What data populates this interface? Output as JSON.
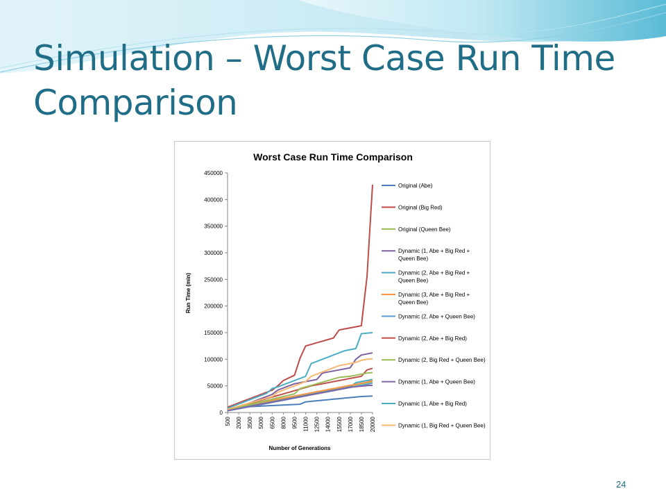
{
  "slide": {
    "title": "Simulation – Worst Case Run Time Comparison",
    "page_number": "24",
    "colors": {
      "title": "#1f6d86",
      "wave_dark": "#5bbbd6",
      "wave_light": "#bfe8f3",
      "accent": "#1f6d86"
    }
  },
  "chart_data": {
    "type": "line",
    "title": "Worst Case Run Time Comparison",
    "xlabel": "Number of Generations",
    "ylabel": "Run Time (min)",
    "ylim": [
      0,
      450000
    ],
    "yticks": [
      0,
      50000,
      100000,
      150000,
      200000,
      250000,
      300000,
      350000,
      400000,
      450000
    ],
    "x": [
      500,
      1250,
      2000,
      2750,
      3500,
      4250,
      5000,
      5750,
      6500,
      7250,
      8000,
      8750,
      9500,
      10250,
      11000,
      11750,
      12500,
      13250,
      14000,
      14750,
      15500,
      16250,
      17000,
      17750,
      18500,
      19250,
      20000
    ],
    "xtick_labels": [
      "500",
      "2000",
      "3500",
      "5000",
      "6500",
      "8000",
      "9500",
      "11000",
      "12500",
      "14000",
      "15500",
      "17000",
      "18500",
      "20000"
    ],
    "grid": false,
    "legend_position": "right",
    "series": [
      {
        "name": "Original (Abe)",
        "color": "#4a7ebb",
        "values": [
          8000,
          9000,
          10000,
          10500,
          11000,
          11500,
          12000,
          12500,
          13000,
          13500,
          14000,
          14500,
          15000,
          15500,
          20000,
          21000,
          22000,
          23000,
          24000,
          25000,
          26000,
          27000,
          28000,
          29000,
          30000,
          30500,
          31000
        ]
      },
      {
        "name": "Original (Big Red)",
        "color": "#be4b48",
        "values": [
          10000,
          14000,
          18000,
          22000,
          26000,
          30000,
          34000,
          38000,
          42000,
          50000,
          60000,
          65000,
          70000,
          102000,
          125000,
          128000,
          131000,
          134000,
          137000,
          140000,
          155000,
          157000,
          159000,
          161000,
          163000,
          255000,
          428000
        ]
      },
      {
        "name": "Original (Queen Bee)",
        "color": "#98b954",
        "values": [
          6000,
          8000,
          10000,
          12000,
          14000,
          16000,
          18000,
          20000,
          22000,
          24000,
          26000,
          28000,
          30000,
          32000,
          34000,
          36000,
          38000,
          40000,
          42000,
          44000,
          46000,
          48000,
          50000,
          52000,
          54000,
          56000,
          58000
        ]
      },
      {
        "name": "Dynamic (1, Abe + Big Red + Queen Bee)",
        "color": "#7d60a0",
        "values": [
          5000,
          8000,
          11000,
          14000,
          18000,
          22000,
          26000,
          30000,
          34000,
          42000,
          46000,
          50000,
          54000,
          56000,
          58000,
          60000,
          62000,
          74000,
          76000,
          78000,
          80000,
          82000,
          84000,
          100000,
          108000,
          110000,
          112000
        ]
      },
      {
        "name": "Dynamic (2, Abe + Big Red + Queen Bee)",
        "color": "#46aac5",
        "values": [
          4000,
          6000,
          8000,
          10000,
          12000,
          14000,
          16000,
          18000,
          20000,
          22000,
          24000,
          26000,
          28000,
          30000,
          32000,
          34000,
          36000,
          38000,
          40000,
          42000,
          44000,
          46000,
          48000,
          56000,
          58000,
          60000,
          62000
        ]
      },
      {
        "name": "Dynamic (3, Abe + Big Red + Queen Bee)",
        "color": "#f79646",
        "values": [
          7000,
          9000,
          11000,
          13000,
          15000,
          17000,
          19000,
          21000,
          23000,
          25000,
          27000,
          29000,
          31000,
          33000,
          35000,
          37000,
          39000,
          41000,
          43000,
          45000,
          47000,
          49000,
          51000,
          53000,
          55000,
          57000,
          60000
        ]
      },
      {
        "name": "Dynamic (2, Abe + Queen Bee)",
        "color": "#5b9bd5",
        "values": [
          3000,
          5000,
          7000,
          9000,
          11000,
          13000,
          15000,
          17000,
          19000,
          21000,
          23000,
          25000,
          27000,
          29000,
          31000,
          33000,
          35000,
          37000,
          39000,
          41000,
          43000,
          45000,
          47000,
          49000,
          51000,
          53000,
          55000
        ]
      },
      {
        "name": "Dynamic (2, Abe + Big Red)",
        "color": "#c0504d",
        "values": [
          5000,
          8000,
          11000,
          14000,
          17000,
          20000,
          23000,
          26000,
          29000,
          32000,
          35000,
          38000,
          41000,
          44000,
          47000,
          50000,
          52000,
          54000,
          56000,
          58000,
          60000,
          62000,
          64000,
          66000,
          68000,
          80000,
          83000
        ]
      },
      {
        "name": "Dynamic (2, Big Red + Queen Bee)",
        "color": "#9bbb59",
        "values": [
          5000,
          7500,
          10000,
          12500,
          15000,
          17500,
          20000,
          22500,
          25000,
          27500,
          30000,
          32500,
          35000,
          45000,
          48000,
          51000,
          54000,
          57000,
          60000,
          63000,
          66000,
          67000,
          68000,
          70000,
          72000,
          74000,
          75000
        ]
      },
      {
        "name": "Dynamic (1, Abe + Queen Bee)",
        "color": "#8064a2",
        "values": [
          3500,
          5500,
          7500,
          9500,
          11500,
          13500,
          15500,
          17500,
          19500,
          21500,
          23500,
          25500,
          27500,
          29500,
          31500,
          33500,
          35500,
          37500,
          39500,
          41500,
          43500,
          45500,
          47500,
          48500,
          49500,
          50500,
          51000
        ]
      },
      {
        "name": "Dynamic (1, Abe + Big Red)",
        "color": "#4bacc6",
        "values": [
          8000,
          12000,
          16000,
          20000,
          24000,
          28000,
          32000,
          36000,
          45000,
          48000,
          52000,
          56000,
          60000,
          64000,
          68000,
          92000,
          96000,
          100000,
          104000,
          108000,
          112000,
          116000,
          118000,
          120000,
          148000,
          149000,
          150000
        ]
      },
      {
        "name": "Dynamic (1, Big Red + Queen Bee)",
        "color": "#f9b770",
        "values": [
          6000,
          9000,
          12000,
          15000,
          18000,
          21000,
          24000,
          27000,
          30000,
          38000,
          42000,
          46000,
          50000,
          54000,
          58000,
          68000,
          72000,
          76000,
          80000,
          84000,
          88000,
          90000,
          92000,
          94000,
          98000,
          100000,
          101000
        ]
      }
    ]
  }
}
